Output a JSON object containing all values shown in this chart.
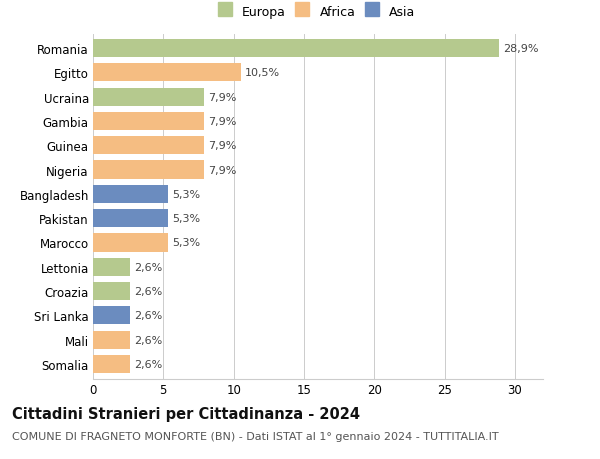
{
  "countries": [
    "Romania",
    "Egitto",
    "Ucraina",
    "Gambia",
    "Guinea",
    "Nigeria",
    "Bangladesh",
    "Pakistan",
    "Marocco",
    "Lettonia",
    "Croazia",
    "Sri Lanka",
    "Mali",
    "Somalia"
  ],
  "values": [
    28.9,
    10.5,
    7.9,
    7.9,
    7.9,
    7.9,
    5.3,
    5.3,
    5.3,
    2.6,
    2.6,
    2.6,
    2.6,
    2.6
  ],
  "labels": [
    "28,9%",
    "10,5%",
    "7,9%",
    "7,9%",
    "7,9%",
    "7,9%",
    "5,3%",
    "5,3%",
    "5,3%",
    "2,6%",
    "2,6%",
    "2,6%",
    "2,6%",
    "2,6%"
  ],
  "continents": [
    "Europa",
    "Africa",
    "Europa",
    "Africa",
    "Africa",
    "Africa",
    "Asia",
    "Asia",
    "Africa",
    "Europa",
    "Europa",
    "Asia",
    "Africa",
    "Africa"
  ],
  "colors": {
    "Europa": "#b5c98e",
    "Africa": "#f5bd82",
    "Asia": "#6b8cbf"
  },
  "legend_order": [
    "Europa",
    "Africa",
    "Asia"
  ],
  "xlim": [
    0,
    32
  ],
  "xticks": [
    0,
    5,
    10,
    15,
    20,
    25,
    30
  ],
  "title": "Cittadini Stranieri per Cittadinanza - 2024",
  "subtitle": "COMUNE DI FRAGNETO MONFORTE (BN) - Dati ISTAT al 1° gennaio 2024 - TUTTITALIA.IT",
  "background_color": "#ffffff",
  "grid_color": "#cccccc",
  "bar_height": 0.75,
  "title_fontsize": 10.5,
  "subtitle_fontsize": 8,
  "tick_fontsize": 8.5,
  "label_fontsize": 8
}
